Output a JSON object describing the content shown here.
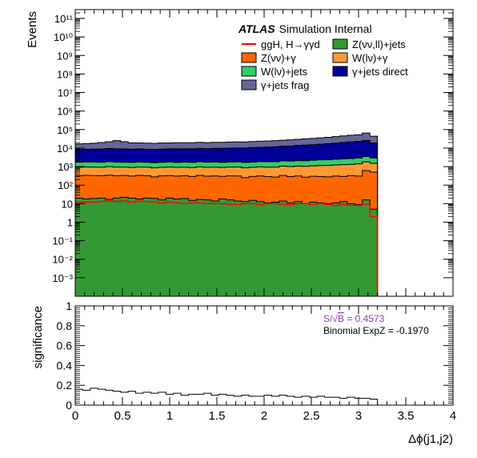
{
  "chart_data": [
    {
      "type": "area",
      "panel": "main",
      "title": "",
      "ylabel": "Events",
      "yscale": "log",
      "ylim": [
        0.0001,
        300000000000
      ],
      "xlim": [
        0,
        4
      ],
      "y_tick_labels": [
        "10¹¹",
        "10¹⁰",
        "10⁹",
        "10⁸",
        "10⁷",
        "10⁶",
        "10⁵",
        "10⁴",
        "10³",
        "10²",
        "10",
        "1",
        "10⁻¹",
        "10⁻²",
        "10⁻³"
      ],
      "y_tick_values": [
        100000000000.0,
        10000000000.0,
        1000000000.0,
        100000000.0,
        10000000.0,
        1000000.0,
        100000.0,
        10000.0,
        1000.0,
        100.0,
        10,
        1,
        0.1,
        0.01,
        0.001
      ],
      "annotation": {
        "bold": "ATLAS",
        "rest": "Simulation Internal"
      },
      "legend": [
        {
          "label": "ggH, H→γγd",
          "color": "#ff0000",
          "kind": "line"
        },
        {
          "label": "Z(νν,ll)+jets",
          "color": "#339933",
          "kind": "box"
        },
        {
          "label": "Z(νν)+γ",
          "color": "#ff6600",
          "kind": "box"
        },
        {
          "label": "W(lν)+γ",
          "color": "#ff9933",
          "kind": "box"
        },
        {
          "label": "W(lν)+jets",
          "color": "#33cc66",
          "kind": "box"
        },
        {
          "label": "γ+jets direct",
          "color": "#000099",
          "kind": "box"
        },
        {
          "label": "γ+jets frag",
          "color": "#666699",
          "kind": "box"
        }
      ],
      "bin_width": 0.08,
      "x": [
        0.04,
        0.12,
        0.2,
        0.28,
        0.36,
        0.44,
        0.52,
        0.6,
        0.68,
        0.76,
        0.84,
        0.92,
        1.0,
        1.08,
        1.16,
        1.24,
        1.32,
        1.4,
        1.48,
        1.56,
        1.64,
        1.72,
        1.8,
        1.88,
        1.96,
        2.04,
        2.12,
        2.2,
        2.28,
        2.36,
        2.44,
        2.52,
        2.6,
        2.68,
        2.76,
        2.84,
        2.92,
        3.0,
        3.08,
        3.16
      ],
      "series": [
        {
          "name": "Z(νν,ll)+jets",
          "color": "#339933",
          "values": [
            20,
            18,
            19,
            20,
            17,
            20,
            22,
            20,
            18,
            20,
            19,
            16,
            20,
            18,
            19,
            15,
            17,
            16,
            14,
            18,
            16,
            14,
            13,
            15,
            13,
            11,
            12,
            14,
            11,
            13,
            10,
            12,
            11,
            10,
            11,
            13,
            10,
            9,
            16,
            5
          ]
        },
        {
          "name": "Z(νν)+γ",
          "color": "#ff6600",
          "values": [
            300,
            320,
            310,
            300,
            330,
            300,
            310,
            290,
            320,
            300,
            260,
            300,
            310,
            290,
            300,
            280,
            320,
            290,
            300,
            280,
            300,
            300,
            240,
            280,
            300,
            280,
            260,
            320,
            280,
            300,
            260,
            290,
            280,
            270,
            300,
            280,
            320,
            300,
            600,
            500
          ]
        },
        {
          "name": "W(lν)+γ",
          "color": "#ff9933",
          "values": [
            600,
            620,
            610,
            600,
            650,
            620,
            600,
            590,
            610,
            600,
            580,
            600,
            620,
            600,
            610,
            600,
            640,
            610,
            620,
            600,
            620,
            640,
            600,
            630,
            660,
            650,
            660,
            720,
            720,
            760,
            760,
            800,
            850,
            870,
            920,
            980,
            1000,
            1100,
            1200,
            1000
          ]
        },
        {
          "name": "W(lν)+jets",
          "color": "#33cc66",
          "values": [
            800,
            830,
            820,
            800,
            860,
            830,
            800,
            790,
            810,
            800,
            780,
            800,
            830,
            800,
            820,
            810,
            850,
            820,
            830,
            810,
            830,
            860,
            820,
            850,
            890,
            880,
            900,
            980,
            980,
            1040,
            1050,
            1100,
            1180,
            1200,
            1280,
            1360,
            1400,
            1550,
            1700,
            1400
          ]
        },
        {
          "name": "γ+jets direct",
          "color": "#000099",
          "values": [
            6500,
            6800,
            7000,
            7200,
            7600,
            7400,
            7300,
            7000,
            7200,
            7000,
            6900,
            7100,
            7300,
            7400,
            7500,
            7400,
            7800,
            7600,
            7900,
            8000,
            8200,
            8500,
            8400,
            8900,
            9200,
            9500,
            10000,
            10500,
            11000,
            11800,
            12500,
            13000,
            14000,
            15000,
            16000,
            17500,
            19000,
            20000,
            22000,
            16000
          ]
        },
        {
          "name": "γ+jets frag",
          "color": "#666699",
          "values": [
            8500,
            8900,
            9500,
            11000,
            12500,
            16000,
            13000,
            10500,
            10000,
            9800,
            9600,
            10200,
            10000,
            10400,
            10300,
            10400,
            10800,
            10500,
            10800,
            10900,
            11200,
            11500,
            11400,
            12000,
            12400,
            12800,
            13500,
            14000,
            15000,
            16000,
            17000,
            18000,
            19500,
            21000,
            23000,
            25000,
            28000,
            30000,
            40000,
            25000
          ]
        }
      ],
      "signal": {
        "name": "ggH, H→γγd",
        "color": "#ff0000",
        "values": [
          12,
          12,
          12,
          13,
          14,
          13,
          14,
          12,
          14,
          13,
          12,
          11,
          12,
          11,
          10,
          11,
          11,
          10,
          10,
          10,
          9,
          9,
          10,
          10,
          9,
          10,
          10,
          9,
          9,
          10,
          10,
          9,
          10,
          9,
          8,
          9,
          8,
          8,
          9,
          2
        ]
      }
    },
    {
      "type": "line",
      "panel": "ratio",
      "ylabel": "significance",
      "xlabel": "Δϕ(j1,j2)",
      "ylim": [
        0,
        1
      ],
      "xlim": [
        0,
        4
      ],
      "y_tick_labels": [
        "0",
        "0.2",
        "0.4",
        "0.6",
        "0.8",
        "1"
      ],
      "y_tick_values": [
        0,
        0.2,
        0.4,
        0.6,
        0.8,
        1
      ],
      "x_tick_labels": [
        "0",
        "0.5",
        "1",
        "1.5",
        "2",
        "2.5",
        "3",
        "3.5",
        "4"
      ],
      "x_tick_values": [
        0,
        0.5,
        1,
        1.5,
        2,
        2.5,
        3,
        3.5,
        4
      ],
      "annotations": [
        {
          "prefix": "S/",
          "root": "√",
          "root_arg": "B",
          "suffix": " = 0.4573",
          "color": "#9933cc"
        },
        {
          "text": "Binomial ExpZ = -0.1970",
          "color": "#0066cc"
        }
      ],
      "bin_width": 0.08,
      "values": [
        0.16,
        0.15,
        0.17,
        0.16,
        0.15,
        0.14,
        0.13,
        0.14,
        0.12,
        0.13,
        0.12,
        0.13,
        0.11,
        0.12,
        0.1,
        0.11,
        0.11,
        0.12,
        0.1,
        0.11,
        0.1,
        0.09,
        0.1,
        0.09,
        0.09,
        0.1,
        0.09,
        0.1,
        0.09,
        0.08,
        0.09,
        0.08,
        0.09,
        0.08,
        0.08,
        0.07,
        0.08,
        0.07,
        0.07,
        0.06
      ]
    }
  ]
}
